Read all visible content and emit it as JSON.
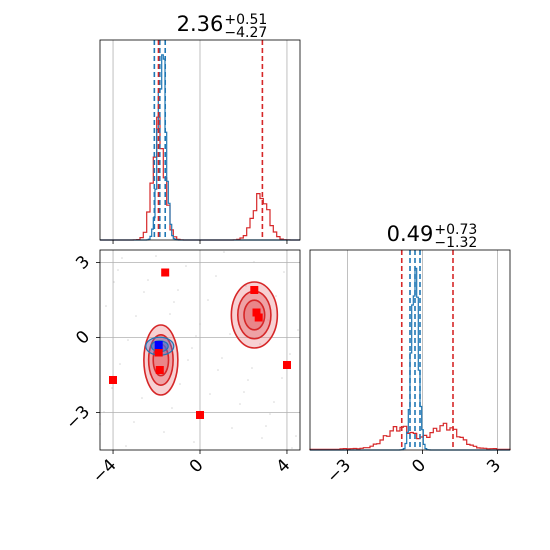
{
  "chart_data": {
    "type": "corner",
    "grid": true,
    "colors": {
      "red": "#d62728",
      "blue": "#1f77b4",
      "red_fill": "#e77c80"
    },
    "panels": {
      "x_hist": {
        "title": {
          "main": "2.36",
          "sup": "+0.51",
          "sub": "−4.27"
        },
        "xlim": [
          -4.6,
          4.6
        ],
        "x_ticks": [
          -4,
          0,
          4
        ],
        "red_lines": [
          -1.91,
          2.87
        ],
        "blue_lines": [
          -2.1,
          -1.85,
          -1.6
        ]
      },
      "y_hist": {
        "title": {
          "main": "0.49",
          "sup": "+0.73",
          "sub": "−1.32"
        },
        "xlim": [
          -4.5,
          3.5
        ],
        "x_ticks": [
          -3,
          0,
          3
        ],
        "x_tick_labels": [
          "−3",
          "0",
          "3"
        ],
        "red_lines": [
          -0.83,
          1.22
        ],
        "blue_lines": [
          -0.5,
          -0.3,
          -0.1
        ]
      },
      "joint": {
        "xlim": [
          -4.6,
          4.6
        ],
        "ylim": [
          -4.5,
          3.5
        ],
        "x_ticks": [
          -4,
          0,
          4
        ],
        "y_ticks": [
          -3,
          0,
          3
        ],
        "x_tick_labels": [
          "−4",
          "0",
          "4"
        ],
        "y_tick_labels": [
          "−3",
          "0",
          "3"
        ],
        "red_points": [
          {
            "x": -1.6,
            "y": 2.6
          },
          {
            "x": 2.5,
            "y": 1.9
          },
          {
            "x": 2.6,
            "y": 1.0
          },
          {
            "x": 2.7,
            "y": 0.8
          },
          {
            "x": -1.9,
            "y": -0.6
          },
          {
            "x": -1.85,
            "y": -1.3
          },
          {
            "x": -4.0,
            "y": -1.7
          },
          {
            "x": 4.0,
            "y": -1.1
          },
          {
            "x": 0.0,
            "y": -3.1
          }
        ],
        "blue_points": [
          {
            "x": -1.9,
            "y": -0.3
          }
        ]
      }
    }
  }
}
